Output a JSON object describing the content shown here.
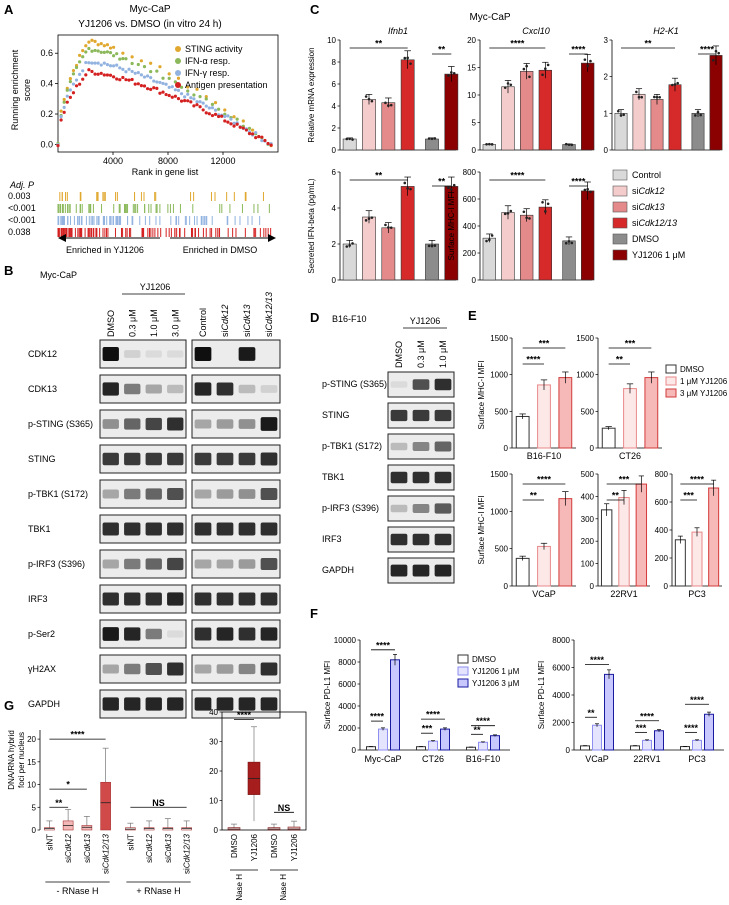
{
  "panels": {
    "A": {
      "label": "A",
      "title_line1": "Myc-CaP",
      "title_line2": "YJ1206 vs. DMSO (in vitro 24 h)",
      "ylabel": "Running enrichment\nscore",
      "xlabel": "Rank in gene list",
      "adjp_label": "Adj. P",
      "pvalues": [
        "0.003",
        "<0.001",
        "<0.001",
        "0.038"
      ],
      "left_arrow": "Enriched in YJ1206",
      "right_arrow": "Enriched in DMSO",
      "yticks": [
        "0.6",
        "0.4",
        "0.2",
        "0.0"
      ],
      "xticks": [
        "4000",
        "8000",
        "12000"
      ],
      "legend": [
        {
          "name": "STING activity",
          "color": "#e0a82e"
        },
        {
          "name": "IFN-α resp.",
          "color": "#8ab85a"
        },
        {
          "name": "IFN-γ resp.",
          "color": "#92b3e0"
        },
        {
          "name": "Antigen presentation",
          "color": "#d42020"
        }
      ],
      "peaks": [
        0.68,
        0.63,
        0.55,
        0.48
      ]
    },
    "B": {
      "label": "B",
      "cell": "Myc-CaP",
      "drug": "YJ1206",
      "lanes_left": [
        "DMSO",
        "0.3 μM",
        "1.0 μM",
        "3.0 μM"
      ],
      "lanes_right": [
        "Control",
        "siCdk12",
        "siCdk13",
        "siCdk12/13"
      ],
      "rows": [
        "CDK12",
        "CDK13",
        "p-STING (S365)",
        "STING",
        "p-TBK1 (S172)",
        "TBK1",
        "p-IRF3 (S396)",
        "IRF3",
        "p-Ser2",
        "γH2AX",
        "GAPDH"
      ]
    },
    "C": {
      "label": "C",
      "cell": "Myc-CaP",
      "charts": [
        {
          "title": "Ifnb1",
          "ylabel": "Relative mRNA expression",
          "yticks": [
            "0",
            "2",
            "4",
            "6",
            "8",
            "10"
          ],
          "ymax": 10,
          "values": [
            1.0,
            4.6,
            4.3,
            8.2,
            1.0,
            6.9
          ],
          "sig": [
            "**",
            "**"
          ]
        },
        {
          "title": "Cxcl10",
          "ylabel": "",
          "yticks": [
            "0",
            "5",
            "10",
            "15",
            "20"
          ],
          "ymax": 20,
          "values": [
            1.0,
            11.5,
            14.3,
            14.5,
            1.0,
            15.8
          ],
          "sig": [
            "****",
            "****"
          ]
        },
        {
          "title": "H2-K1",
          "ylabel": "",
          "yticks": [
            "0",
            "1",
            "2",
            "3"
          ],
          "ymax": 3,
          "values": [
            1.0,
            1.52,
            1.38,
            1.78,
            1.0,
            2.58
          ],
          "sig": [
            "**",
            "****"
          ]
        },
        {
          "title": "",
          "ylabel": "Secreted IFN-beta (pg/mL)",
          "yticks": [
            "0",
            "2",
            "4",
            "6"
          ],
          "ymax": 6,
          "values": [
            2.0,
            3.5,
            2.9,
            5.2,
            2.0,
            5.2
          ],
          "sig": [
            "**",
            "**"
          ]
        },
        {
          "title": "",
          "ylabel": "Surface MHC-I MFI",
          "yticks": [
            "0",
            "200",
            "400",
            "600",
            "800"
          ],
          "ymax": 800,
          "values": [
            310,
            500,
            480,
            540,
            290,
            660
          ],
          "sig": [
            "****",
            "****"
          ]
        }
      ],
      "legend": [
        {
          "name": "Control",
          "color": "#d9d9d9"
        },
        {
          "name": "siCdk12",
          "color": "#f4cccc"
        },
        {
          "name": "siCdk13",
          "color": "#e48a8a"
        },
        {
          "name": "siCdk12/13",
          "color": "#d62a2a"
        },
        {
          "name": "DMSO",
          "color": "#8c8c8c"
        },
        {
          "name": "YJ1206 1 μM",
          "color": "#8b0000"
        }
      ]
    },
    "D": {
      "label": "D",
      "cell": "B16-F10",
      "drug": "YJ1206",
      "lanes": [
        "DMSO",
        "0.3 μM",
        "1.0 μM"
      ],
      "rows": [
        "p-STING (S365)",
        "STING",
        "p-TBK1 (S172)",
        "TBK1",
        "p-IRF3 (S396)",
        "IRF3",
        "GAPDH"
      ]
    },
    "E": {
      "label": "E",
      "ylabel": "Surface MHC-I MFI",
      "legend": [
        "DMSO",
        "1 μM YJ1206",
        "3 μM YJ1206"
      ],
      "charts": [
        {
          "cell": "B16-F10",
          "yticks": [
            "0",
            "500",
            "1000",
            "1500"
          ],
          "ymax": 1500,
          "values": [
            430,
            860,
            960
          ],
          "sig": [
            "****",
            "***"
          ]
        },
        {
          "cell": "CT26",
          "yticks": [
            "0",
            "500",
            "1000",
            "1500"
          ],
          "ymax": 1500,
          "values": [
            270,
            810,
            960
          ],
          "sig": [
            "**",
            "***"
          ]
        },
        {
          "cell": "VCaP",
          "yticks": [
            "0",
            "500",
            "1000",
            "1500"
          ],
          "ymax": 1500,
          "values": [
            370,
            530,
            1170
          ],
          "sig": [
            "**",
            "****"
          ]
        },
        {
          "cell": "22RV1",
          "yticks": [
            "0",
            "100",
            "200",
            "300",
            "400",
            "500"
          ],
          "ymax": 500,
          "values": [
            340,
            395,
            455
          ],
          "sig": [
            "**",
            "***"
          ]
        },
        {
          "cell": "PC3",
          "yticks": [
            "0",
            "200",
            "400",
            "600",
            "800"
          ],
          "ymax": 800,
          "values": [
            330,
            385,
            700
          ],
          "sig": [
            "***",
            "****"
          ]
        }
      ]
    },
    "F": {
      "label": "F",
      "ylabel": "Surface PD-L1 MFI",
      "legend": [
        "DMSO",
        "YJ1206 1 μM",
        "YJ1206 3 μM"
      ],
      "charts": [
        {
          "yticks": [
            "0",
            "2000",
            "4000",
            "6000",
            "8000",
            "10000"
          ],
          "ymax": 10000,
          "groups": [
            "Myc-CaP",
            "CT26",
            "B16-F10"
          ],
          "values": [
            [
              300,
              1900,
              8200
            ],
            [
              300,
              800,
              1900
            ],
            [
              250,
              700,
              1300
            ]
          ],
          "sig": [
            [
              "****",
              "****"
            ],
            [
              "***",
              "****"
            ],
            [
              "**",
              "****"
            ]
          ]
        },
        {
          "yticks": [
            "0",
            "2000",
            "4000",
            "6000",
            "8000"
          ],
          "ymax": 8000,
          "groups": [
            "VCaP",
            "22RV1",
            "PC3"
          ],
          "values": [
            [
              300,
              1800,
              5500
            ],
            [
              300,
              700,
              1400
            ],
            [
              250,
              700,
              2600
            ]
          ],
          "sig": [
            [
              "**",
              "****"
            ],
            [
              "***",
              "****"
            ],
            [
              "****",
              "****"
            ]
          ]
        }
      ]
    },
    "G": {
      "label": "G",
      "ylabel": "DNA/RNA hybrid\nfoci per nucleus",
      "left_yticks": [
        "0",
        "5",
        "10",
        "15",
        "20"
      ],
      "left_groups": [
        "siNT",
        "siCdk12",
        "siCdk13",
        "siCdk12/13",
        "siNT",
        "siCdk12",
        "siCdk13",
        "siCdk12/13"
      ],
      "left_sig": [
        "**",
        "*",
        "****",
        "NS"
      ],
      "minus_rnase": "- RNase H",
      "plus_rnase": "+ RNase H",
      "right_yticks": [
        "0",
        "10",
        "20",
        "30",
        "40"
      ],
      "right_groups": [
        "DMSO",
        "YJ1206",
        "DMSO",
        "YJ1206"
      ],
      "right_sig": [
        "****",
        "NS"
      ],
      "medians_left": [
        0.3,
        1.0,
        0.6,
        6.0,
        0.2,
        0.3,
        0.3,
        0.3
      ],
      "medians_right": [
        0.3,
        17.5,
        0.3,
        0.3
      ]
    }
  }
}
